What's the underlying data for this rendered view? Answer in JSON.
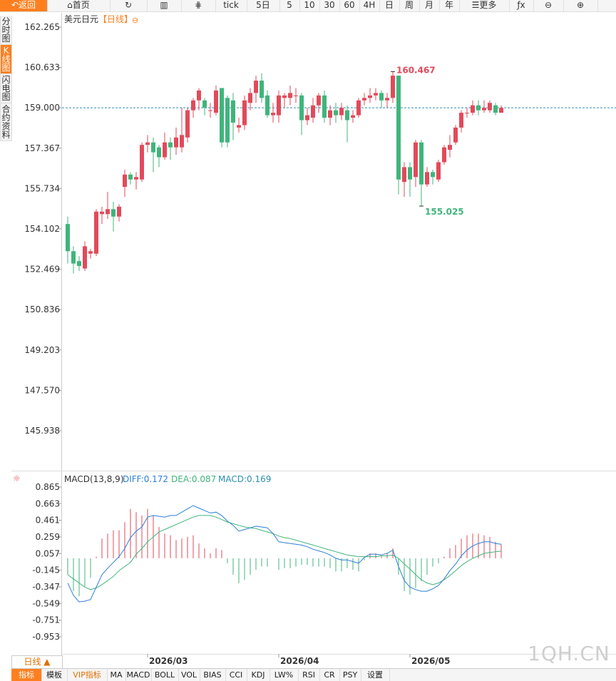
{
  "toolbar": {
    "back": "返回",
    "home": "首页",
    "tick": "tick",
    "d5": "5日",
    "m5": "5",
    "m10": "10",
    "m30": "30",
    "m60": "60",
    "h4": "4H",
    "day": "日",
    "week": "周",
    "month": "月",
    "year": "年",
    "more": "更多"
  },
  "sidebar": {
    "items": [
      "分时图",
      "K线图",
      "闪电图",
      "合约资料"
    ]
  },
  "chart_header": {
    "symbol": "美元日元",
    "period_tag": "【日线】"
  },
  "macd_header": {
    "name": "MACD(13,8,9)",
    "diff": "DIFF:0.172",
    "dea": "DEA:0.087",
    "macd": "MACD:0.169"
  },
  "colors": {
    "up": "#e24a5a",
    "down": "#3fb57b",
    "diff_line": "#2a7fd8",
    "dea_line": "#3fb57b",
    "ref_line": "#2a8fb0",
    "accent": "#ff7f1f"
  },
  "bottom": {
    "period": "日线 ▲",
    "tabs": [
      "指标",
      "模板",
      "VIP指标",
      "MA",
      "MACD",
      "BOLL",
      "VOL",
      "BIAS",
      "CCI",
      "KDJ",
      "LW%",
      "RSI",
      "CR",
      "PSY",
      "设置"
    ]
  },
  "watermark": "1QH.CN",
  "chart_data": [
    {
      "type": "candlestick",
      "title": "美元日元【日线】",
      "y_ticks": [
        "162.265",
        "160.633",
        "159.000",
        "157.367",
        "155.734",
        "154.102",
        "152.469",
        "150.836",
        "149.203",
        "147.570",
        "145.938"
      ],
      "ylim": [
        145.938,
        162.265
      ],
      "x_tick_labels": [
        "2026/03",
        "2026/04",
        "2026/05"
      ],
      "x_tick_index": [
        14,
        37,
        60
      ],
      "ref_price": 159.0,
      "max_label": "160.467",
      "min_label": "155.025",
      "max_index": 57,
      "min_index": 62,
      "candles": [
        {
          "o": 154.3,
          "c": 153.2,
          "h": 154.6,
          "l": 152.7
        },
        {
          "o": 153.2,
          "c": 152.7,
          "h": 153.4,
          "l": 152.3
        },
        {
          "o": 152.8,
          "c": 152.6,
          "h": 153.0,
          "l": 152.4
        },
        {
          "o": 152.5,
          "c": 153.4,
          "h": 153.6,
          "l": 152.4
        },
        {
          "o": 153.1,
          "c": 153.2,
          "h": 153.3,
          "l": 152.9
        },
        {
          "o": 153.1,
          "c": 154.8,
          "h": 154.9,
          "l": 153.0
        },
        {
          "o": 154.7,
          "c": 154.8,
          "h": 155.0,
          "l": 154.3
        },
        {
          "o": 154.7,
          "c": 154.9,
          "h": 155.6,
          "l": 154.5
        },
        {
          "o": 154.9,
          "c": 154.6,
          "h": 155.2,
          "l": 154.0
        },
        {
          "o": 154.6,
          "c": 155.0,
          "h": 155.1,
          "l": 154.4
        },
        {
          "o": 155.8,
          "c": 156.3,
          "h": 156.5,
          "l": 155.4
        },
        {
          "o": 156.3,
          "c": 156.1,
          "h": 156.4,
          "l": 155.9
        },
        {
          "o": 156.1,
          "c": 156.2,
          "h": 156.4,
          "l": 155.7
        },
        {
          "o": 156.1,
          "c": 157.5,
          "h": 157.6,
          "l": 156.0
        },
        {
          "o": 157.5,
          "c": 157.6,
          "h": 157.9,
          "l": 157.2
        },
        {
          "o": 157.6,
          "c": 157.2,
          "h": 157.8,
          "l": 156.4
        },
        {
          "o": 157.4,
          "c": 157.0,
          "h": 157.5,
          "l": 156.6
        },
        {
          "o": 157.0,
          "c": 157.6,
          "h": 158.0,
          "l": 156.9
        },
        {
          "o": 157.6,
          "c": 157.4,
          "h": 157.8,
          "l": 156.9
        },
        {
          "o": 157.4,
          "c": 157.8,
          "h": 158.2,
          "l": 157.1
        },
        {
          "o": 157.4,
          "c": 157.9,
          "h": 159.0,
          "l": 157.2
        },
        {
          "o": 157.8,
          "c": 158.9,
          "h": 159.0,
          "l": 157.6
        },
        {
          "o": 158.9,
          "c": 159.3,
          "h": 159.4,
          "l": 158.6
        },
        {
          "o": 159.3,
          "c": 159.7,
          "h": 159.8,
          "l": 158.9
        },
        {
          "o": 159.3,
          "c": 159.0,
          "h": 159.4,
          "l": 158.7
        },
        {
          "o": 158.9,
          "c": 158.9,
          "h": 159.2,
          "l": 158.6
        },
        {
          "o": 158.8,
          "c": 159.7,
          "h": 159.9,
          "l": 158.7
        },
        {
          "o": 159.8,
          "c": 157.6,
          "h": 159.8,
          "l": 157.4
        },
        {
          "o": 159.4,
          "c": 157.6,
          "h": 159.5,
          "l": 157.4
        },
        {
          "o": 159.3,
          "c": 158.4,
          "h": 159.6,
          "l": 157.7
        },
        {
          "o": 158.2,
          "c": 158.3,
          "h": 158.6,
          "l": 158.0
        },
        {
          "o": 158.3,
          "c": 159.3,
          "h": 159.5,
          "l": 158.1
        },
        {
          "o": 159.2,
          "c": 159.6,
          "h": 159.8,
          "l": 158.9
        },
        {
          "o": 159.6,
          "c": 160.1,
          "h": 160.3,
          "l": 159.2
        },
        {
          "o": 160.1,
          "c": 159.4,
          "h": 160.4,
          "l": 159.2
        },
        {
          "o": 159.5,
          "c": 158.7,
          "h": 159.7,
          "l": 158.6
        },
        {
          "o": 158.7,
          "c": 158.8,
          "h": 159.2,
          "l": 158.4
        },
        {
          "o": 158.7,
          "c": 159.5,
          "h": 159.7,
          "l": 158.4
        },
        {
          "o": 159.4,
          "c": 159.5,
          "h": 159.6,
          "l": 159.0
        },
        {
          "o": 159.4,
          "c": 159.6,
          "h": 159.9,
          "l": 159.1
        },
        {
          "o": 159.5,
          "c": 159.5,
          "h": 159.8,
          "l": 159.2
        },
        {
          "o": 159.5,
          "c": 158.5,
          "h": 159.6,
          "l": 157.9
        },
        {
          "o": 158.5,
          "c": 158.7,
          "h": 159.0,
          "l": 158.3
        },
        {
          "o": 158.6,
          "c": 159.1,
          "h": 159.4,
          "l": 158.4
        },
        {
          "o": 159.1,
          "c": 159.5,
          "h": 159.6,
          "l": 158.8
        },
        {
          "o": 159.5,
          "c": 158.6,
          "h": 159.7,
          "l": 158.4
        },
        {
          "o": 158.6,
          "c": 158.9,
          "h": 159.1,
          "l": 158.3
        },
        {
          "o": 158.9,
          "c": 158.7,
          "h": 159.2,
          "l": 158.4
        },
        {
          "o": 158.7,
          "c": 159.0,
          "h": 159.2,
          "l": 158.5
        },
        {
          "o": 158.9,
          "c": 158.5,
          "h": 159.1,
          "l": 157.6
        },
        {
          "o": 158.6,
          "c": 158.7,
          "h": 158.9,
          "l": 158.4
        },
        {
          "o": 158.7,
          "c": 159.3,
          "h": 159.4,
          "l": 158.6
        },
        {
          "o": 159.3,
          "c": 159.4,
          "h": 159.6,
          "l": 159.1
        },
        {
          "o": 159.4,
          "c": 159.5,
          "h": 159.8,
          "l": 159.2
        },
        {
          "o": 159.5,
          "c": 159.6,
          "h": 159.8,
          "l": 159.3
        },
        {
          "o": 159.6,
          "c": 159.3,
          "h": 159.7,
          "l": 159.0
        },
        {
          "o": 159.3,
          "c": 159.4,
          "h": 159.6,
          "l": 159.0
        },
        {
          "o": 159.4,
          "c": 160.3,
          "h": 160.467,
          "l": 159.2
        },
        {
          "o": 160.3,
          "c": 156.1,
          "h": 160.3,
          "l": 155.5
        },
        {
          "o": 156.0,
          "c": 156.6,
          "h": 156.8,
          "l": 155.4
        },
        {
          "o": 156.6,
          "c": 156.1,
          "h": 156.8,
          "l": 155.4
        },
        {
          "o": 156.2,
          "c": 157.6,
          "h": 157.7,
          "l": 155.8
        },
        {
          "o": 157.6,
          "c": 155.9,
          "h": 157.7,
          "l": 155.025
        },
        {
          "o": 155.9,
          "c": 156.4,
          "h": 156.6,
          "l": 155.8
        },
        {
          "o": 156.4,
          "c": 156.2,
          "h": 156.5,
          "l": 155.9
        },
        {
          "o": 156.1,
          "c": 156.8,
          "h": 156.9,
          "l": 156.0
        },
        {
          "o": 156.8,
          "c": 157.4,
          "h": 157.5,
          "l": 156.7
        },
        {
          "o": 157.3,
          "c": 157.5,
          "h": 157.9,
          "l": 157.0
        },
        {
          "o": 157.6,
          "c": 158.2,
          "h": 158.3,
          "l": 157.5
        },
        {
          "o": 158.2,
          "c": 158.8,
          "h": 158.9,
          "l": 158.0
        },
        {
          "o": 158.8,
          "c": 158.8,
          "h": 159.0,
          "l": 158.6
        },
        {
          "o": 158.8,
          "c": 159.1,
          "h": 159.3,
          "l": 158.7
        },
        {
          "o": 159.1,
          "c": 158.9,
          "h": 159.3,
          "l": 158.7
        },
        {
          "o": 158.9,
          "c": 159.0,
          "h": 159.3,
          "l": 158.8
        },
        {
          "o": 158.9,
          "c": 159.2,
          "h": 159.3,
          "l": 158.8
        },
        {
          "o": 159.1,
          "c": 158.8,
          "h": 159.2,
          "l": 158.7
        },
        {
          "o": 158.8,
          "c": 159.0,
          "h": 159.1,
          "l": 158.8
        }
      ]
    },
    {
      "type": "line",
      "title": "MACD(13,8,9)",
      "y_ticks": [
        "0.865",
        "0.663",
        "0.461",
        "0.259",
        "0.057",
        "-0.145",
        "-0.347",
        "-0.549",
        "-0.751",
        "-0.953"
      ],
      "ylim": [
        -0.953,
        0.865
      ],
      "series": [
        {
          "name": "DIFF",
          "values": [
            -0.3,
            -0.45,
            -0.53,
            -0.52,
            -0.5,
            -0.35,
            -0.2,
            -0.12,
            -0.05,
            0.02,
            0.12,
            0.25,
            0.33,
            0.38,
            0.5,
            0.52,
            0.51,
            0.5,
            0.52,
            0.52,
            0.56,
            0.6,
            0.64,
            0.61,
            0.58,
            0.55,
            0.56,
            0.52,
            0.45,
            0.4,
            0.33,
            0.35,
            0.37,
            0.39,
            0.38,
            0.37,
            0.3,
            0.2,
            0.19,
            0.18,
            0.17,
            0.16,
            0.14,
            0.11,
            0.09,
            0.07,
            0.04,
            0.0,
            -0.02,
            -0.02,
            -0.04,
            -0.06,
            0.01,
            0.05,
            0.05,
            0.04,
            0.06,
            0.1,
            -0.1,
            -0.27,
            -0.35,
            -0.38,
            -0.4,
            -0.4,
            -0.37,
            -0.33,
            -0.25,
            -0.15,
            -0.07,
            0.03,
            0.1,
            0.15,
            0.18,
            0.2,
            0.2,
            0.18,
            0.17
          ]
        },
        {
          "name": "DEA",
          "values": [
            -0.2,
            -0.25,
            -0.3,
            -0.35,
            -0.38,
            -0.36,
            -0.32,
            -0.27,
            -0.22,
            -0.15,
            -0.1,
            -0.05,
            0.05,
            0.12,
            0.2,
            0.26,
            0.32,
            0.35,
            0.38,
            0.41,
            0.44,
            0.47,
            0.5,
            0.52,
            0.52,
            0.52,
            0.5,
            0.47,
            0.44,
            0.42,
            0.4,
            0.38,
            0.37,
            0.36,
            0.34,
            0.32,
            0.3,
            0.27,
            0.25,
            0.24,
            0.22,
            0.2,
            0.18,
            0.16,
            0.14,
            0.12,
            0.1,
            0.08,
            0.06,
            0.04,
            0.03,
            0.02,
            0.02,
            0.02,
            0.02,
            0.03,
            0.03,
            0.04,
            0.0,
            -0.07,
            -0.13,
            -0.2,
            -0.26,
            -0.3,
            -0.32,
            -0.3,
            -0.26,
            -0.21,
            -0.15,
            -0.09,
            -0.04,
            0.0,
            0.03,
            0.06,
            0.07,
            0.08,
            0.087
          ]
        },
        {
          "name": "MACD",
          "values": [
            -0.2,
            -0.4,
            -0.46,
            -0.34,
            -0.24,
            0.02,
            0.24,
            0.3,
            0.34,
            0.34,
            0.44,
            0.6,
            0.56,
            0.52,
            0.6,
            0.52,
            0.38,
            0.3,
            0.28,
            0.22,
            0.24,
            0.26,
            0.28,
            0.18,
            0.12,
            0.06,
            0.12,
            0.1,
            -0.06,
            -0.2,
            -0.3,
            -0.26,
            -0.2,
            -0.14,
            -0.1,
            -0.1,
            0.0,
            -0.14,
            -0.12,
            -0.12,
            -0.1,
            -0.08,
            -0.08,
            -0.1,
            -0.1,
            -0.1,
            -0.12,
            -0.16,
            -0.16,
            -0.12,
            -0.14,
            -0.16,
            -0.02,
            0.06,
            0.06,
            0.02,
            0.06,
            0.12,
            -0.2,
            -0.4,
            -0.44,
            -0.36,
            -0.28,
            -0.2,
            -0.1,
            -0.06,
            0.02,
            0.12,
            0.16,
            0.24,
            0.28,
            0.3,
            0.3,
            0.28,
            0.26,
            0.2,
            0.169
          ]
        }
      ]
    }
  ]
}
